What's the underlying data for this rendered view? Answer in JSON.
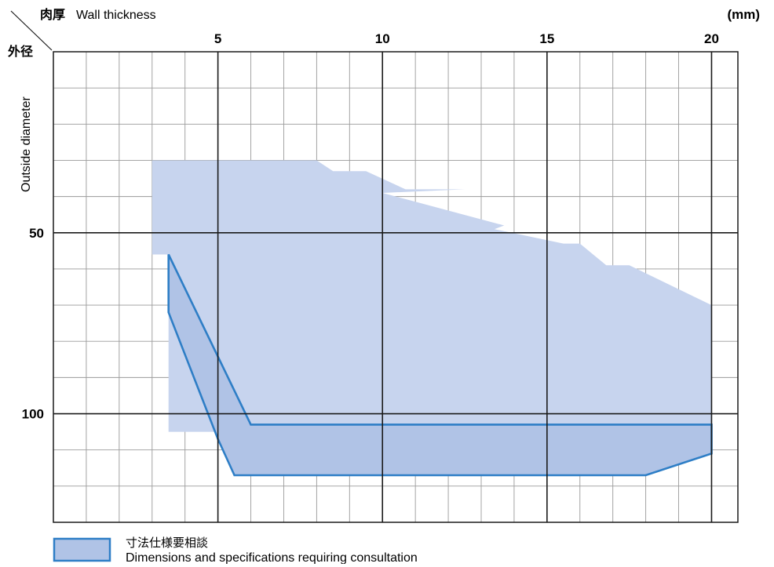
{
  "chart_data": {
    "type": "area",
    "corner_labels": {
      "x_jp": "肉厚",
      "x_en": "Wall thickness",
      "y_jp": "外径",
      "y_en": "Outside diameter"
    },
    "x_unit": "(mm)",
    "x_ticks": [
      5,
      10,
      15,
      20
    ],
    "y_ticks": [
      50,
      100
    ],
    "xlim": [
      0,
      20.8
    ],
    "ylim": [
      0,
      130
    ],
    "x_axis_position": "top",
    "y_axis_inverted": true,
    "grid": true,
    "grid_minor_x_step": 1,
    "grid_minor_y_step": 10,
    "colors": {
      "range_fill": "#c7d4ee",
      "consult_fill": "#b0c3e6",
      "consult_stroke": "#2e7ec6",
      "major_grid": "#1a1a1a",
      "minor_grid": "#9a9a9a"
    },
    "series": [
      {
        "role": "available-range",
        "points": [
          {
            "x": 3.0,
            "y": 30
          },
          {
            "x": 8.0,
            "y": 30
          },
          {
            "x": 8.5,
            "y": 33
          },
          {
            "x": 9.5,
            "y": 33
          },
          {
            "x": 10.7,
            "y": 38
          },
          {
            "x": 12.5,
            "y": 38
          },
          {
            "x": 10.0,
            "y": 39
          },
          {
            "x": 13.7,
            "y": 48
          },
          {
            "x": 13.4,
            "y": 49
          },
          {
            "x": 15.5,
            "y": 53
          },
          {
            "x": 16.0,
            "y": 53
          },
          {
            "x": 16.8,
            "y": 59
          },
          {
            "x": 17.5,
            "y": 59
          },
          {
            "x": 20.0,
            "y": 70
          },
          {
            "x": 20.0,
            "y": 105
          },
          {
            "x": 3.5,
            "y": 105
          },
          {
            "x": 3.5,
            "y": 56
          },
          {
            "x": 3.0,
            "y": 56
          }
        ]
      },
      {
        "name": "寸法仕様要相談",
        "name_en": "Dimensions and specifications requiring consultation",
        "role": "consultation",
        "points": [
          {
            "x": 3.5,
            "y": 56
          },
          {
            "x": 6.0,
            "y": 103
          },
          {
            "x": 20.0,
            "y": 103
          },
          {
            "x": 20.0,
            "y": 111
          },
          {
            "x": 18.0,
            "y": 117
          },
          {
            "x": 5.5,
            "y": 117
          },
          {
            "x": 5.0,
            "y": 107
          },
          {
            "x": 3.5,
            "y": 72
          }
        ]
      }
    ],
    "legend": {
      "placement": "bottom-left",
      "label_jp": "寸法仕様要相談",
      "label_en": "Dimensions and specifications requiring consultation"
    }
  }
}
